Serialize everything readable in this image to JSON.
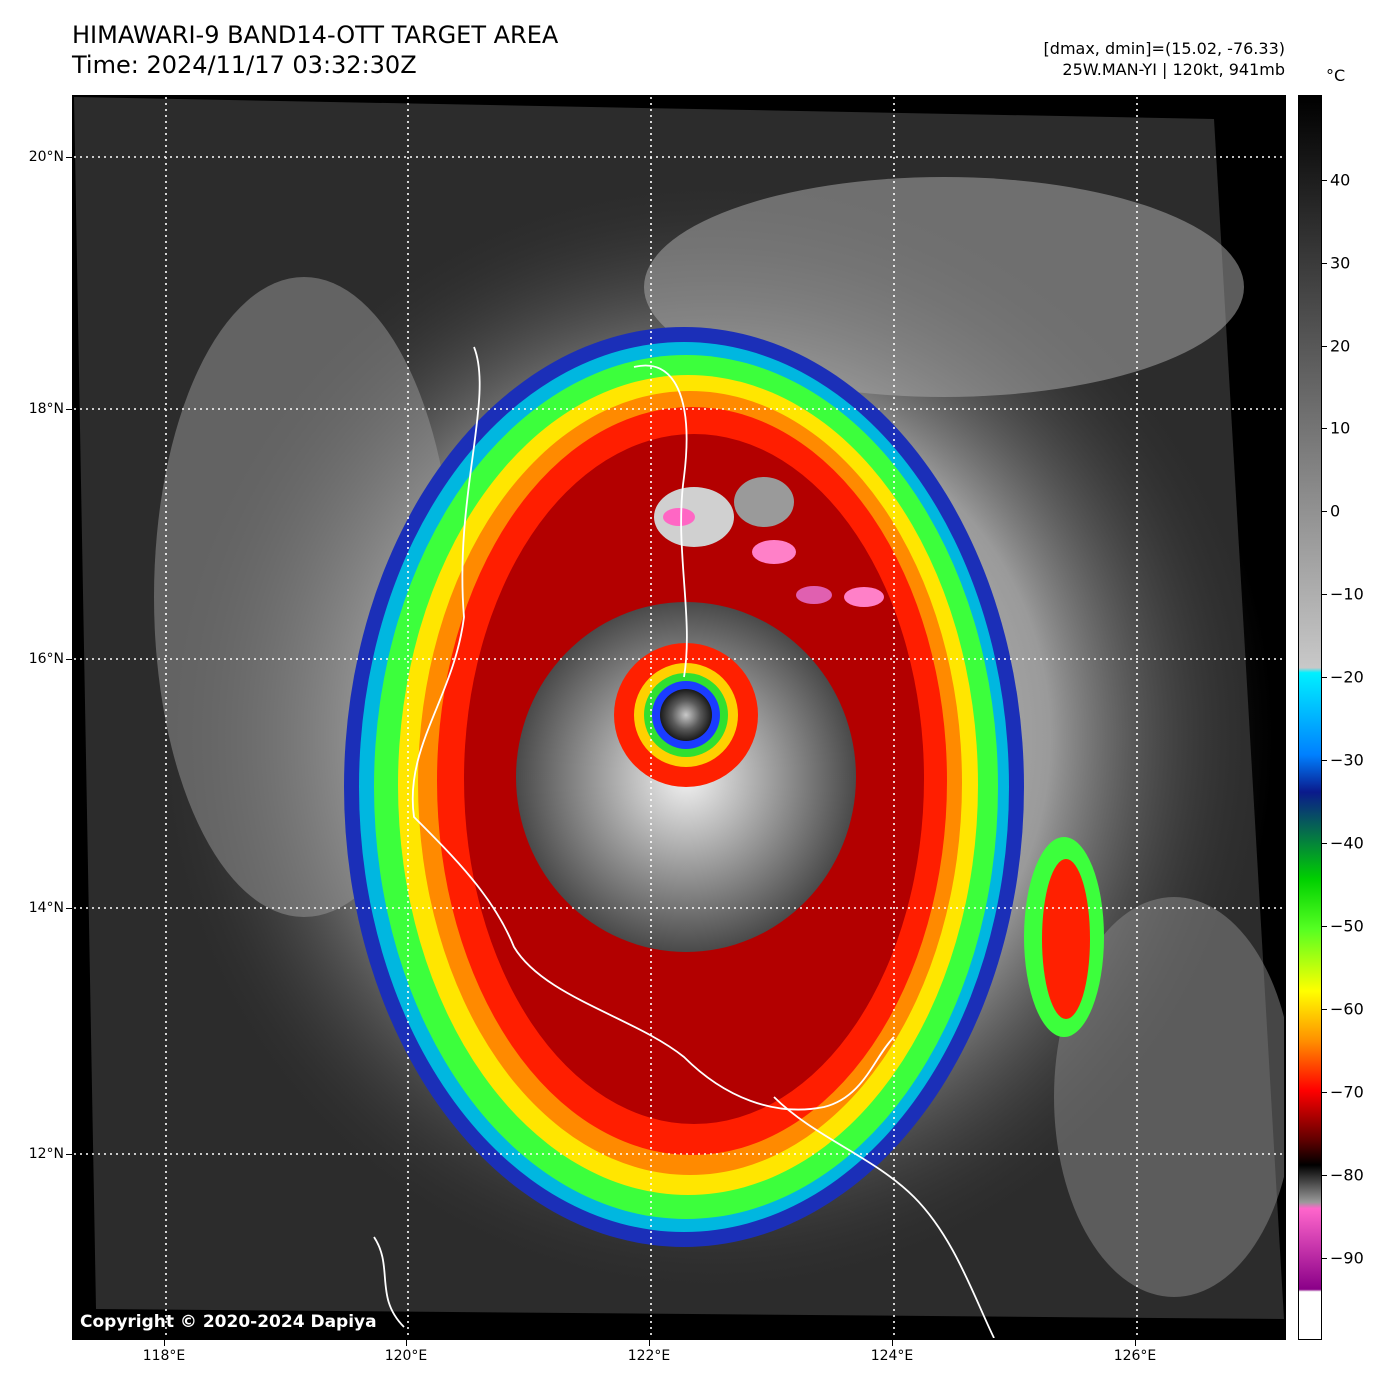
{
  "title": {
    "line1": "HIMAWARI-9 BAND14-OTT TARGET AREA",
    "line2": "Time: 2024/11/17 03:32:30Z"
  },
  "meta": {
    "line1": "[dmax, dmin]=(15.02, -76.33)",
    "line2": "25W.MAN-YI | 120kt, 941mb"
  },
  "colorbar": {
    "unit": "°C",
    "ticks": [
      "40",
      "30",
      "20",
      "10",
      "0",
      "−10",
      "−20",
      "−30",
      "−40",
      "−50",
      "−60",
      "−70",
      "−80",
      "−90"
    ]
  },
  "axes": {
    "lat_labels": [
      "20°N",
      "18°N",
      "16°N",
      "14°N",
      "12°N"
    ],
    "lon_labels": [
      "118°E",
      "120°E",
      "122°E",
      "124°E",
      "126°E"
    ]
  },
  "copyright": "Copyright © 2020-2024 Dapiya",
  "colors": {
    "eye_ring": "#e00000",
    "wall": "#ff2a00",
    "cold_ring_green": "#33ff33",
    "cold_ring_blue": "#1a3cff",
    "cloud_gray": "#bdbdbd",
    "background": "#2b2b2b"
  }
}
